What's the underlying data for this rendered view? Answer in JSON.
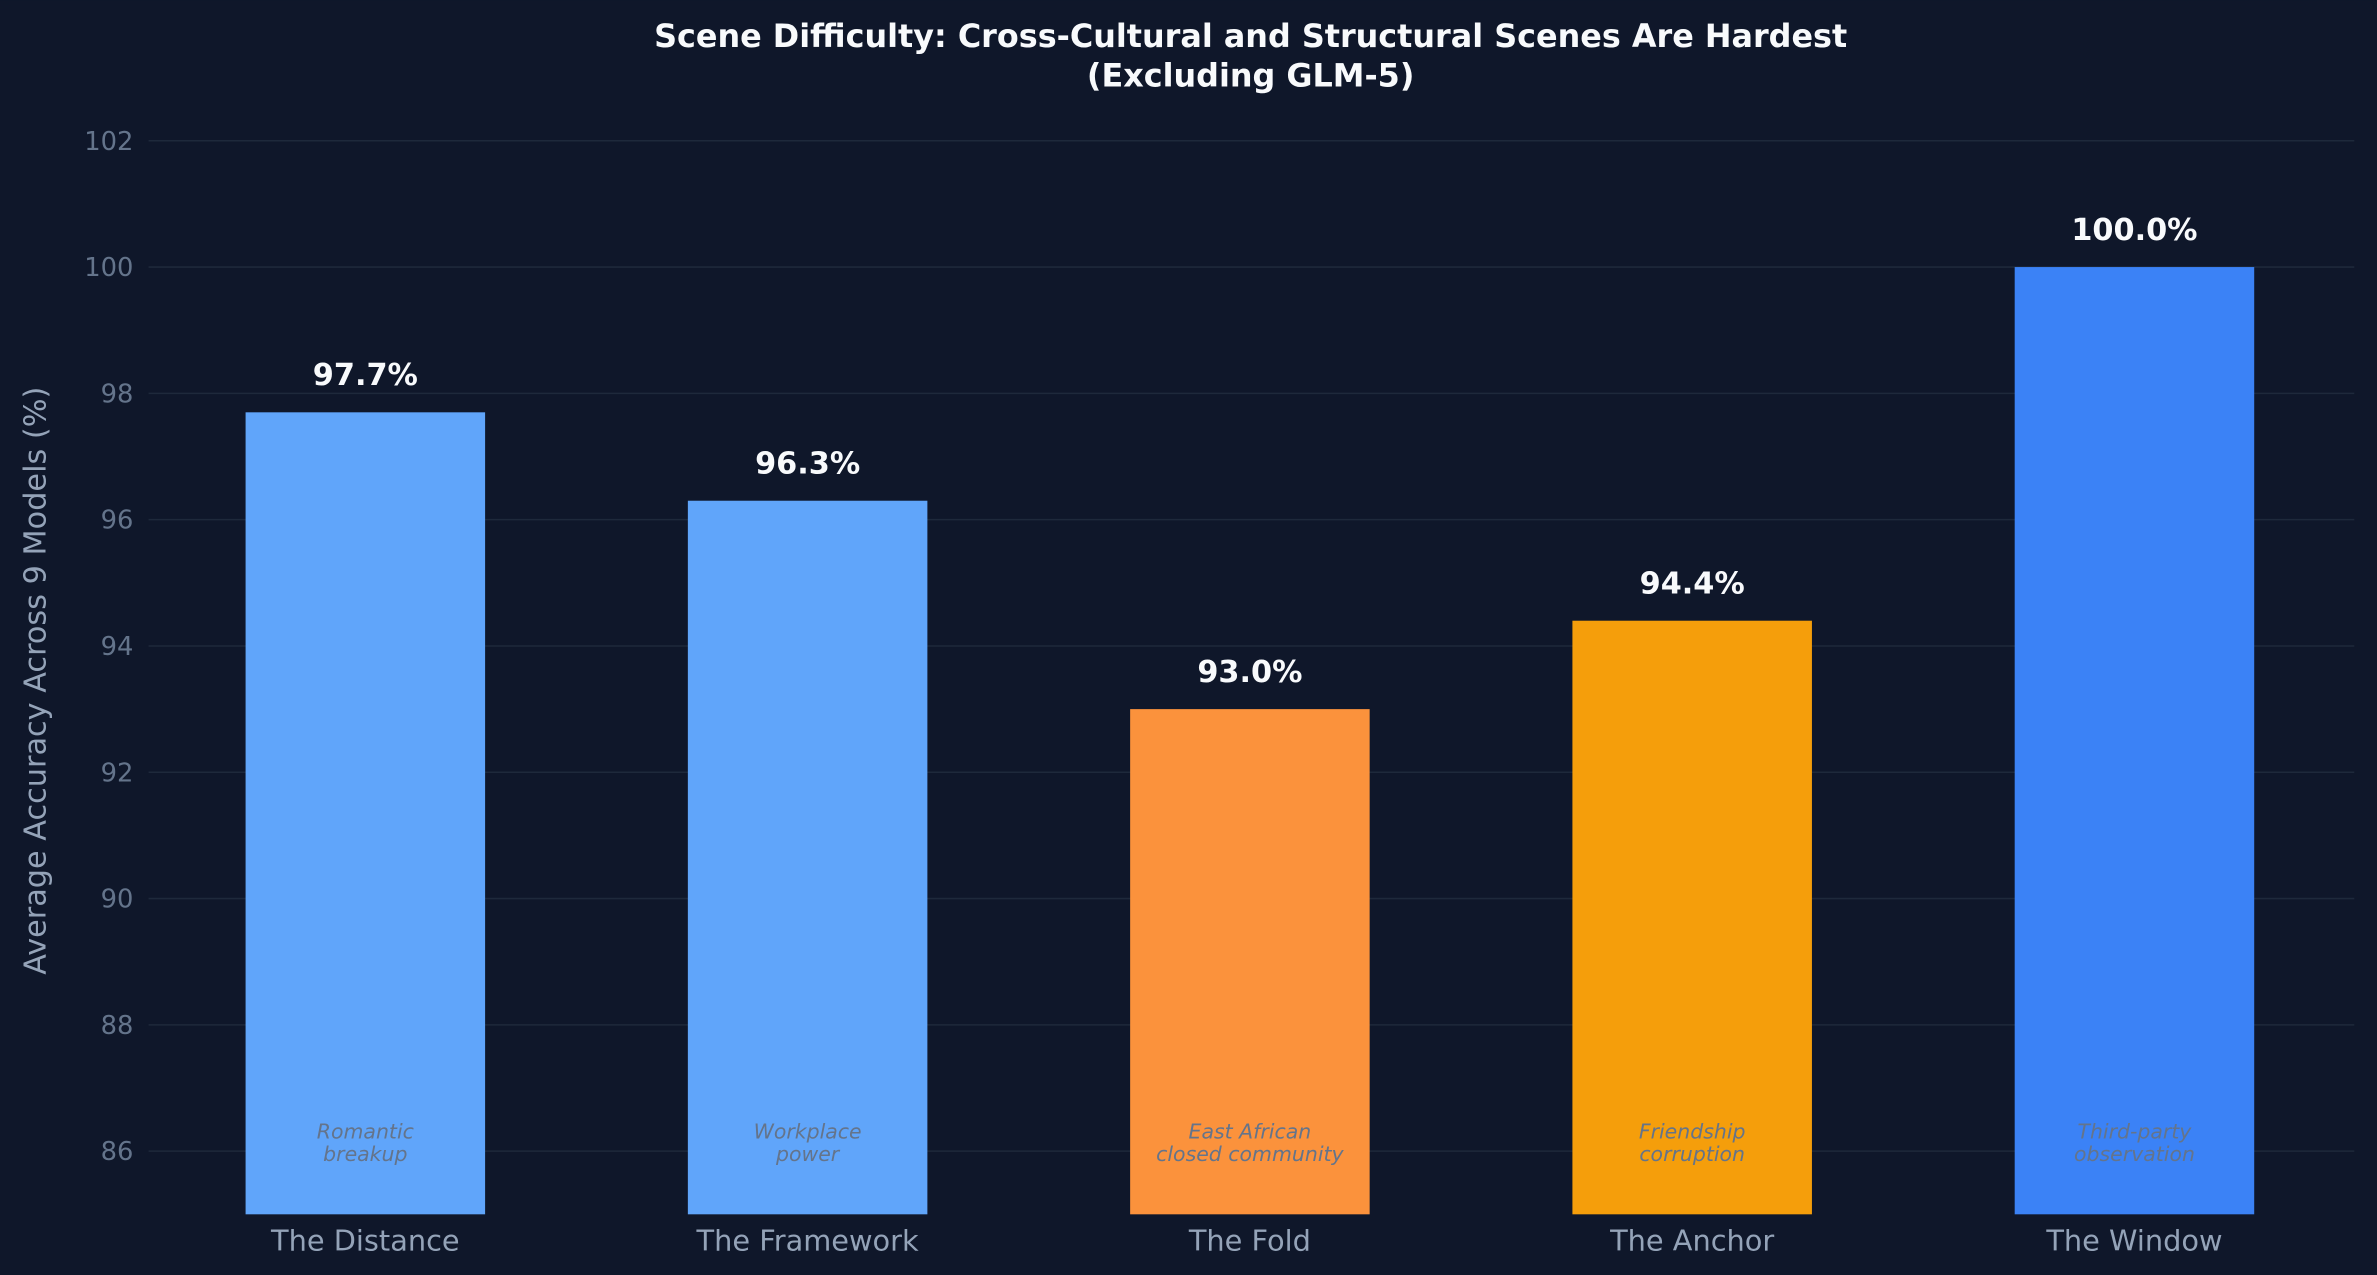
{
  "chart_data": {
    "type": "bar",
    "title": "Scene Difficulty: Cross-Cultural and Structural Scenes Are Hardest",
    "subtitle": "(Excluding GLM-5)",
    "xlabel": "",
    "ylabel": "Average Accuracy Across 9 Models (%)",
    "categories": [
      "The Distance",
      "The Framework",
      "The Fold",
      "The Anchor",
      "The Window"
    ],
    "values": [
      97.7,
      96.3,
      93.0,
      94.4,
      100.0
    ],
    "value_labels": [
      "97.7%",
      "96.3%",
      "93.0%",
      "94.4%",
      "100.0%"
    ],
    "annotations": [
      [
        "Romantic",
        "breakup"
      ],
      [
        "Workplace",
        "power"
      ],
      [
        "East African",
        "closed community"
      ],
      [
        "Friendship",
        "corruption"
      ],
      [
        "Third-party",
        "observation"
      ]
    ],
    "colors": [
      "#60a5fa",
      "#60a5fa",
      "#fb923c",
      "#f59e0b",
      "#3b82f6"
    ],
    "ylim": [
      85,
      102.5
    ],
    "yticks": [
      86,
      88,
      90,
      92,
      94,
      96,
      98,
      100,
      102
    ],
    "grid": true,
    "background": "#0f172a"
  }
}
